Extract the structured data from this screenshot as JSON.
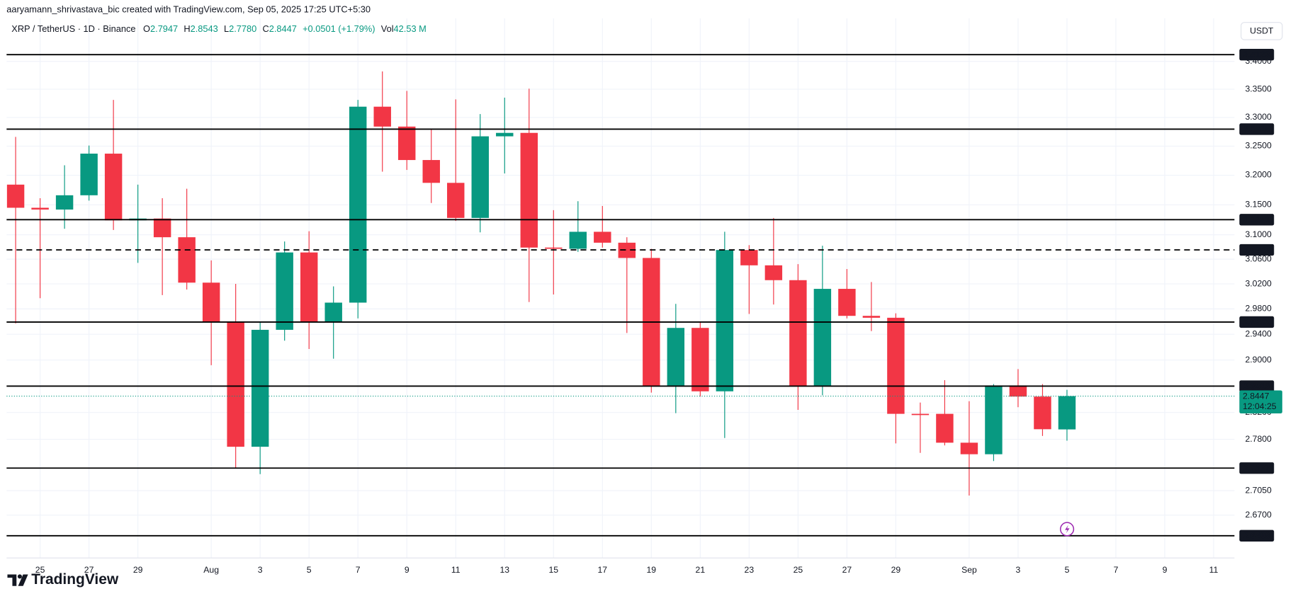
{
  "header": {
    "attribution": "aaryamann_shrivastava_bic created with TradingView.com, Sep 05, 2025 17:25 UTC+5:30",
    "symbol": "XRP / TetherUS · 1D · Binance",
    "legend": [
      {
        "key": "O",
        "value": "2.7947"
      },
      {
        "key": "H",
        "value": "2.8543"
      },
      {
        "key": "L",
        "value": "2.7780"
      },
      {
        "key": "C",
        "value": "2.8447"
      }
    ],
    "change": "+0.0501 (+1.79%)",
    "volume_key": "Vol",
    "volume": "42.53 M"
  },
  "currency": "USDT",
  "brand": "TradingView",
  "chart_data": {
    "type": "candlestick",
    "log_scale": true,
    "grid": true,
    "up_color": "#089981",
    "down_color": "#f23645",
    "open": [
      3.184,
      3.145,
      3.142,
      3.166,
      3.237,
      3.124,
      3.127,
      3.096,
      3.022,
      2.96,
      2.769,
      2.947,
      3.071,
      2.96,
      2.99,
      3.319,
      3.284,
      3.226,
      3.187,
      3.128,
      3.267,
      3.273,
      3.079,
      3.077,
      3.105,
      3.087,
      3.062,
      2.86,
      2.95,
      2.852,
      3.075,
      3.05,
      3.026,
      2.86,
      3.012,
      2.969,
      2.966,
      2.818,
      2.818,
      2.775,
      2.758,
      2.861,
      2.844,
      2.7947
    ],
    "high": [
      3.266,
      3.161,
      3.217,
      3.251,
      3.331,
      3.184,
      3.161,
      3.177,
      3.058,
      3.02,
      2.96,
      3.089,
      3.106,
      3.016,
      3.331,
      3.382,
      3.347,
      3.279,
      3.332,
      3.306,
      3.335,
      3.351,
      3.141,
      3.156,
      3.148,
      3.096,
      3.077,
      2.988,
      2.959,
      3.105,
      3.083,
      3.128,
      3.052,
      3.082,
      3.044,
      3.023,
      2.973,
      2.835,
      2.869,
      2.837,
      2.863,
      2.886,
      2.863,
      2.8543
    ],
    "low": [
      2.957,
      2.997,
      3.11,
      3.157,
      3.108,
      3.054,
      3.002,
      3.011,
      2.892,
      2.737,
      2.729,
      2.93,
      2.917,
      2.902,
      2.965,
      3.206,
      3.209,
      3.153,
      3.123,
      3.104,
      3.203,
      2.991,
      3.003,
      3.072,
      3.079,
      2.942,
      2.85,
      2.819,
      2.844,
      2.782,
      2.972,
      2.987,
      2.824,
      2.846,
      2.965,
      2.945,
      2.774,
      2.76,
      2.771,
      2.698,
      2.748,
      2.828,
      2.785,
      2.778
    ],
    "close": [
      3.145,
      3.142,
      3.166,
      3.237,
      3.124,
      3.127,
      3.096,
      3.022,
      2.96,
      2.769,
      2.947,
      3.071,
      2.96,
      2.99,
      3.319,
      3.284,
      3.226,
      3.187,
      3.128,
      3.267,
      3.273,
      3.079,
      3.077,
      3.105,
      3.087,
      3.062,
      2.86,
      2.95,
      2.852,
      3.075,
      3.05,
      3.026,
      2.86,
      3.012,
      2.969,
      2.966,
      2.818,
      2.817,
      2.775,
      2.758,
      2.861,
      2.844,
      2.795,
      2.8447
    ],
    "xlim": [
      -0.37,
      49.85
    ],
    "xticks": [
      {
        "value": 1,
        "label": "25"
      },
      {
        "value": 3,
        "label": "27"
      },
      {
        "value": 5,
        "label": "29"
      },
      {
        "value": 8,
        "label": "Aug"
      },
      {
        "value": 10,
        "label": "3"
      },
      {
        "value": 12,
        "label": "5"
      },
      {
        "value": 14,
        "label": "7"
      },
      {
        "value": 16,
        "label": "9"
      },
      {
        "value": 18,
        "label": "11"
      },
      {
        "value": 20,
        "label": "13"
      },
      {
        "value": 22,
        "label": "15"
      },
      {
        "value": 24,
        "label": "17"
      },
      {
        "value": 26,
        "label": "19"
      },
      {
        "value": 28,
        "label": "21"
      },
      {
        "value": 30,
        "label": "23"
      },
      {
        "value": 32,
        "label": "25"
      },
      {
        "value": 34,
        "label": "27"
      },
      {
        "value": 36,
        "label": "29"
      },
      {
        "value": 39,
        "label": "Sep"
      },
      {
        "value": 41,
        "label": "3"
      },
      {
        "value": 43,
        "label": "5"
      },
      {
        "value": 45,
        "label": "7"
      },
      {
        "value": 47,
        "label": "9"
      },
      {
        "value": 49,
        "label": "11"
      }
    ],
    "ylim": [
      2.6097,
      3.479
    ],
    "yticks": [
      {
        "value": 3.4,
        "label": "3.4000"
      },
      {
        "value": 3.35,
        "label": "3.3500"
      },
      {
        "value": 3.3,
        "label": "3.3000"
      },
      {
        "value": 3.25,
        "label": "3.2500"
      },
      {
        "value": 3.2,
        "label": "3.2000"
      },
      {
        "value": 3.15,
        "label": "3.1500"
      },
      {
        "value": 3.1,
        "label": "3.1000"
      },
      {
        "value": 3.06,
        "label": "3.0600"
      },
      {
        "value": 3.02,
        "label": "3.0200"
      },
      {
        "value": 2.98,
        "label": "2.9800"
      },
      {
        "value": 2.94,
        "label": "2.9400"
      },
      {
        "value": 2.9,
        "label": "2.9000"
      },
      {
        "value": 2.82,
        "label": "2.8200"
      },
      {
        "value": 2.78,
        "label": "2.7800"
      },
      {
        "value": 2.705,
        "label": "2.7050"
      },
      {
        "value": 2.67,
        "label": "2.6700"
      }
    ],
    "levels": [
      3.4123,
      3.2795,
      3.1251,
      2.9592,
      2.8599,
      2.7377,
      2.6408
    ],
    "dashed_levels": [
      3.0752
    ],
    "last_price": 2.8447,
    "countdown": "12:04:25"
  }
}
